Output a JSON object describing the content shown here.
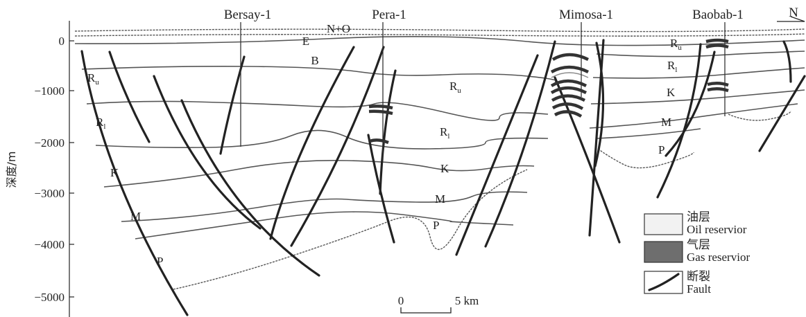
{
  "axis": {
    "ylabel": "深度/m",
    "ticks": [
      "0",
      "−1000",
      "−2000",
      "−3000",
      "−4000",
      "−5000"
    ]
  },
  "wells": [
    "Bersay-1",
    "Pera-1",
    "Mimosa-1",
    "Baobab-1"
  ],
  "north_label": "N",
  "units": {
    "n_o": "N+O",
    "e": "E",
    "b": "B",
    "ru": "R",
    "ru_sub": "u",
    "rl": "R",
    "rl_sub": "l",
    "k": "K",
    "m": "M",
    "p": "P"
  },
  "scale": {
    "start": "0",
    "end": "5 km"
  },
  "legend": {
    "oil_cn": "油层",
    "oil_en": "Oil reservior",
    "gas_cn": "气层",
    "gas_en": "Gas reservior",
    "fault_cn": "断裂",
    "fault_en": "Fault"
  },
  "colors": {
    "oil": "#f2f2f2",
    "gas": "#6e6e6e",
    "line": "#222222"
  }
}
